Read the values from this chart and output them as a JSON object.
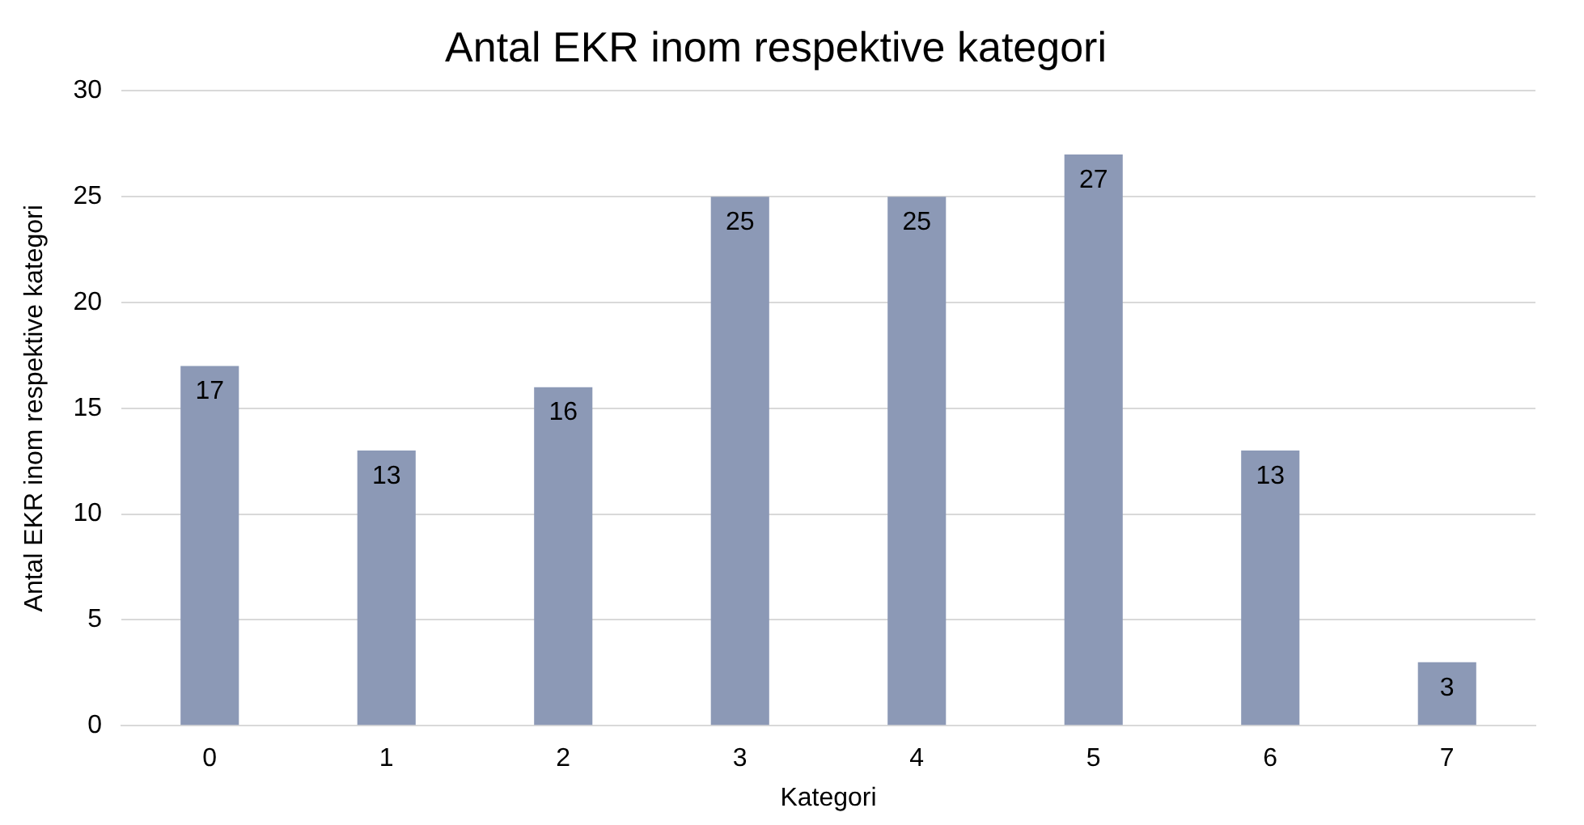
{
  "chart_data": {
    "type": "bar",
    "title": "Antal EKR inom respektive kategori",
    "xlabel": "Kategori",
    "ylabel": "Antal EKR inom respektive kategori",
    "categories": [
      "0",
      "1",
      "2",
      "3",
      "4",
      "5",
      "6",
      "7"
    ],
    "values": [
      17,
      13,
      16,
      25,
      25,
      27,
      13,
      3
    ],
    "color": "#8c99b6",
    "ylim": [
      0,
      30
    ],
    "yticks": [
      0,
      5,
      10,
      15,
      20,
      25,
      30
    ],
    "grid": "y",
    "data_labels": true,
    "legend": false
  }
}
